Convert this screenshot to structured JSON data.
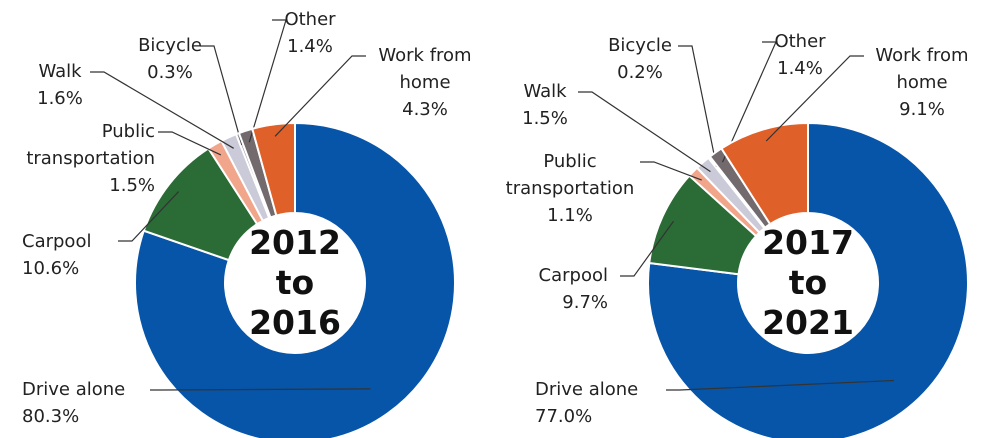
{
  "chart_data": [
    {
      "type": "pie",
      "donut": true,
      "center_label": [
        "2012",
        "to",
        "2016"
      ],
      "categories": [
        "Drive alone",
        "Carpool",
        "Public transportation",
        "Walk",
        "Bicycle",
        "Other",
        "Work from home"
      ],
      "values": [
        80.3,
        10.6,
        1.5,
        1.6,
        0.3,
        1.4,
        4.3
      ],
      "value_labels": [
        "80.3%",
        "10.6%",
        "1.5%",
        "1.6%",
        "0.3%",
        "1.4%",
        "4.3%"
      ],
      "colors": [
        "#0755a8",
        "#2b6b36",
        "#f1a68b",
        "#cbcad8",
        "#9b9aa6",
        "#736a6e",
        "#e0602a"
      ]
    },
    {
      "type": "pie",
      "donut": true,
      "center_label": [
        "2017",
        "to",
        "2021"
      ],
      "categories": [
        "Drive alone",
        "Carpool",
        "Public transportation",
        "Walk",
        "Bicycle",
        "Other",
        "Work from home"
      ],
      "values": [
        77.0,
        9.7,
        1.1,
        1.5,
        0.2,
        1.4,
        9.1
      ],
      "value_labels": [
        "77.0%",
        "9.7%",
        "1.1%",
        "1.5%",
        "0.2%",
        "1.4%",
        "9.1%"
      ],
      "colors": [
        "#0755a8",
        "#2b6b36",
        "#f1a68b",
        "#cbcad8",
        "#9b9aa6",
        "#736a6e",
        "#e0602a"
      ]
    }
  ]
}
